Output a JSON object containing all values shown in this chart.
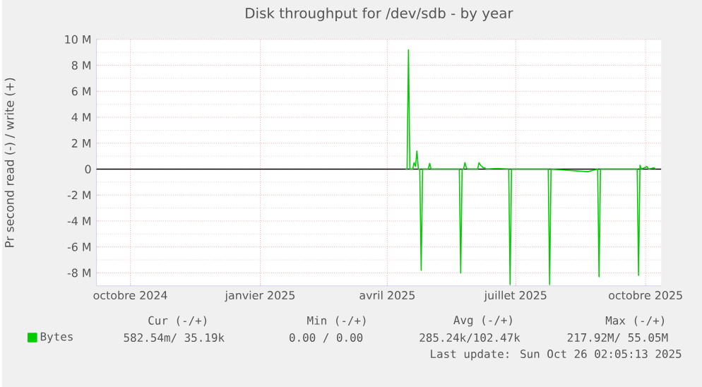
{
  "chart_data": {
    "type": "line",
    "title": "Disk throughput for /dev/sdb - by year",
    "ylabel": "Pr second read (-) / write (+)",
    "x": [
      "2025-04-14",
      "2025-04-15",
      "2025-04-16",
      "2025-04-17",
      "2025-04-19",
      "2025-04-20",
      "2025-04-21",
      "2025-04-22",
      "2025-04-23",
      "2025-04-24",
      "2025-04-25",
      "2025-04-26",
      "2025-04-30",
      "2025-05-01",
      "2025-05-02",
      "2025-05-22",
      "2025-05-23",
      "2025-05-24",
      "2025-05-25",
      "2025-05-26",
      "2025-05-27",
      "2025-05-28",
      "2025-06-04",
      "2025-06-05",
      "2025-06-06",
      "2025-06-08",
      "2025-06-09",
      "2025-06-10",
      "2025-06-18",
      "2025-06-26",
      "2025-06-27",
      "2025-06-28",
      "2025-07-24",
      "2025-07-25",
      "2025-07-26",
      "2025-08-21",
      "2025-08-28",
      "2025-08-29",
      "2025-08-30",
      "2025-09-25",
      "2025-09-26",
      "2025-09-27",
      "2025-09-28",
      "2025-10-02",
      "2025-10-03",
      "2025-10-07",
      "2025-10-08"
    ],
    "series": [
      {
        "name": "Bytes",
        "color": "#00cc00",
        "values": [
          0,
          0,
          9200000,
          0,
          0,
          500000,
          200000,
          1400000,
          0,
          0,
          -7800000,
          0,
          0,
          450000,
          0,
          0,
          -8000000,
          0,
          0,
          500000,
          100000,
          0,
          0,
          500000,
          300000,
          100000,
          100000,
          0,
          50000,
          0,
          -8900000,
          0,
          0,
          -8900000,
          0,
          -200000,
          0,
          -8300000,
          0,
          0,
          -8200000,
          300000,
          0,
          200000,
          0,
          100000,
          0
        ]
      }
    ],
    "xlim": [
      "2024-09-07",
      "2025-10-12"
    ],
    "xticks": [
      {
        "value": "2024-10-01",
        "label": "octobre 2024"
      },
      {
        "value": "2025-01-01",
        "label": "janvier 2025"
      },
      {
        "value": "2025-04-01",
        "label": "avril 2025"
      },
      {
        "value": "2025-07-01",
        "label": "juillet 2025"
      },
      {
        "value": "2025-10-01",
        "label": "octobre 2025"
      }
    ],
    "ylim": [
      -9000000,
      10000000
    ],
    "yticks": [
      {
        "value": -8000000,
        "label": "-8 M"
      },
      {
        "value": -6000000,
        "label": "-6 M"
      },
      {
        "value": -4000000,
        "label": "-4 M"
      },
      {
        "value": -2000000,
        "label": "-2 M"
      },
      0,
      {
        "value": 2000000,
        "label": "2 M"
      },
      {
        "value": 4000000,
        "label": "4 M"
      },
      {
        "value": 6000000,
        "label": "6 M"
      },
      {
        "value": 8000000,
        "label": "8 M"
      },
      {
        "value": 10000000,
        "label": "10 M"
      }
    ],
    "ref_lines": [
      {
        "axis": "y",
        "value": 0,
        "color": "#000000"
      }
    ],
    "grid": true,
    "legend": "bottom left",
    "marker": "none",
    "line_style": "solid",
    "annotations": [
      "Cur (-/+)",
      "Min (-/+)",
      "Avg (-/+)",
      "Max (-/+)",
      "582.54m/ 35.19k",
      "0.00 /  0.00",
      "285.24k/102.47k",
      "217.92M/ 55.05M",
      "Last update: Sun Oct 26 02:05:13 2025"
    ]
  }
}
